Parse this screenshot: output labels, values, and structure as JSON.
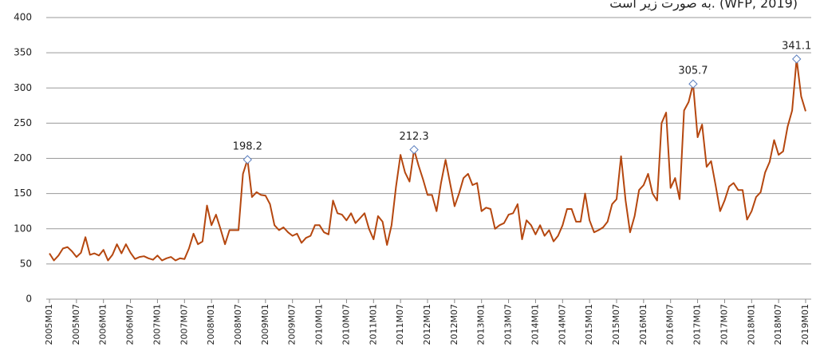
{
  "chart_data": {
    "type": "line",
    "subtitle": "به صورت زیر است. (WFP, 2019)",
    "categories": [
      "2005M01",
      null,
      null,
      null,
      null,
      null,
      "2005M07",
      null,
      null,
      null,
      null,
      null,
      "2006M01",
      null,
      null,
      null,
      null,
      null,
      "2006M07",
      null,
      null,
      null,
      null,
      null,
      "2007M01",
      null,
      null,
      null,
      null,
      null,
      "2007M07",
      null,
      null,
      null,
      null,
      null,
      "2008M01",
      null,
      null,
      null,
      null,
      null,
      "2008M07",
      null,
      null,
      null,
      null,
      null,
      "2009M01",
      null,
      null,
      null,
      null,
      null,
      "2009M07",
      null,
      null,
      null,
      null,
      null,
      "2010M01",
      null,
      null,
      null,
      null,
      null,
      "2010M07",
      null,
      null,
      null,
      null,
      null,
      "2011M01",
      null,
      null,
      null,
      null,
      null,
      "2011M07",
      null,
      null,
      null,
      null,
      null,
      "2012M01",
      null,
      null,
      null,
      null,
      null,
      "2012M07",
      null,
      null,
      null,
      null,
      null,
      "2013M01",
      null,
      null,
      null,
      null,
      null,
      "2013M07",
      null,
      null,
      null,
      null,
      null,
      "2014M01",
      null,
      null,
      null,
      null,
      null,
      "2014M07",
      null,
      null,
      null,
      null,
      null,
      "2015M01",
      null,
      null,
      null,
      null,
      null,
      "2015M07",
      null,
      null,
      null,
      null,
      null,
      "2016M01",
      null,
      null,
      null,
      null,
      null,
      "2016M07",
      null,
      null,
      null,
      null,
      null,
      "2017M01",
      null,
      null,
      null,
      null,
      null,
      "2017M07",
      null,
      null,
      null,
      null,
      null,
      "2018M01",
      null,
      null,
      null,
      null,
      null,
      "2018M07",
      null,
      null,
      null,
      null,
      null,
      "2019M01"
    ],
    "values": [
      65,
      55,
      62,
      72,
      74,
      68,
      60,
      66,
      88,
      63,
      65,
      62,
      70,
      55,
      63,
      78,
      65,
      78,
      66,
      57,
      60,
      61,
      58,
      56,
      62,
      55,
      58,
      60,
      55,
      58,
      57,
      72,
      93,
      78,
      82,
      133,
      105,
      120,
      100,
      78,
      98,
      98,
      98,
      178,
      198.2,
      145,
      152,
      148,
      147,
      135,
      105,
      98,
      102,
      95,
      90,
      93,
      80,
      87,
      90,
      105,
      105,
      95,
      92,
      140,
      122,
      120,
      112,
      122,
      108,
      115,
      122,
      100,
      85,
      118,
      110,
      77,
      105,
      160,
      205,
      180,
      167,
      212.3,
      190,
      170,
      148,
      148,
      125,
      165,
      198,
      165,
      132,
      150,
      172,
      178,
      162,
      165,
      125,
      130,
      128,
      100,
      105,
      108,
      120,
      122,
      135,
      85,
      112,
      105,
      92,
      105,
      90,
      98,
      82,
      90,
      105,
      128,
      128,
      110,
      110,
      150,
      112,
      95,
      98,
      102,
      110,
      135,
      142,
      203,
      140,
      95,
      118,
      155,
      162,
      178,
      150,
      140,
      250,
      265,
      158,
      172,
      142,
      268,
      280,
      305.7,
      230,
      248,
      188,
      196,
      162,
      125,
      140,
      160,
      165,
      155,
      155,
      113,
      125,
      145,
      152,
      180,
      195,
      226,
      205,
      210,
      245,
      268,
      341.1,
      288,
      267
    ],
    "labeled_points": [
      44,
      81,
      143,
      166
    ],
    "color": "#b5470f",
    "ylim": [
      0,
      400
    ],
    "yticks": [
      0,
      50,
      100,
      150,
      200,
      250,
      300,
      350,
      400
    ],
    "grid": true
  }
}
